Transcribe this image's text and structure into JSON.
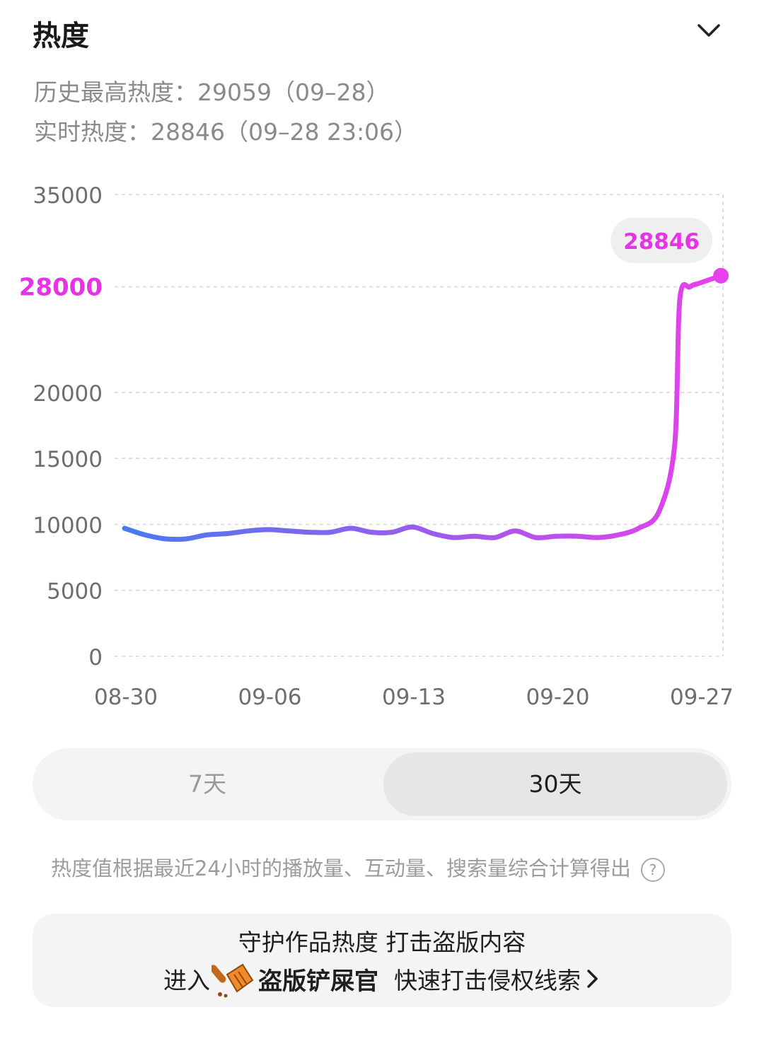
{
  "header": {
    "title": "热度"
  },
  "stats": {
    "history_high": "历史最高热度：29059（09–28）",
    "realtime": "实时热度：28846（09–28 23:06）"
  },
  "colors": {
    "line_start": "#4a7af0",
    "line_end": "#e840ea",
    "accent": "#e633e6"
  },
  "chart_data": {
    "type": "line",
    "title": "",
    "xlabel": "",
    "ylabel": "",
    "x_tick_labels": [
      "08-30",
      "09-06",
      "09-13",
      "09-20",
      "09-27"
    ],
    "y_tick_labels": [
      "0",
      "5000",
      "10000",
      "15000",
      "20000",
      "28000",
      "35000"
    ],
    "y_ticks": [
      0,
      5000,
      10000,
      15000,
      20000,
      28000,
      35000
    ],
    "highlight_tick": "28000",
    "ylim": [
      0,
      35000
    ],
    "grid": true,
    "series": [
      {
        "x": [
          "08-30",
          "08-31",
          "09-01",
          "09-02",
          "09-03",
          "09-04",
          "09-05",
          "09-06",
          "09-07",
          "09-08",
          "09-09",
          "09-10",
          "09-11",
          "09-12",
          "09-13",
          "09-14",
          "09-15",
          "09-16",
          "09-17",
          "09-18",
          "09-19",
          "09-20",
          "09-21",
          "09-22",
          "09-23",
          "09-24",
          "09-25",
          "09-25 18:00",
          "09-26",
          "09-26 12:00",
          "09-27",
          "09-28"
        ],
        "y": [
          9700,
          9200,
          8900,
          8900,
          9200,
          9300,
          9500,
          9600,
          9500,
          9400,
          9400,
          9700,
          9400,
          9400,
          9800,
          9300,
          9000,
          9100,
          9000,
          9500,
          9000,
          9100,
          9100,
          9000,
          9200,
          9700,
          11000,
          16000,
          27000,
          28000,
          28300,
          28846
        ]
      }
    ],
    "last_point_label": "28846"
  },
  "range_tabs": {
    "tab_7": "7天",
    "tab_30": "30天",
    "selected": "30天"
  },
  "note": {
    "text": "热度值根据最近24小时的播放量、互动量、搜索量综合计算得出",
    "help": "?"
  },
  "promo": {
    "line1": "守护作品热度 打击盗版内容",
    "prefix": "进入",
    "brand": "盗版铲屎官",
    "suffix": "快速打击侵权线索"
  }
}
